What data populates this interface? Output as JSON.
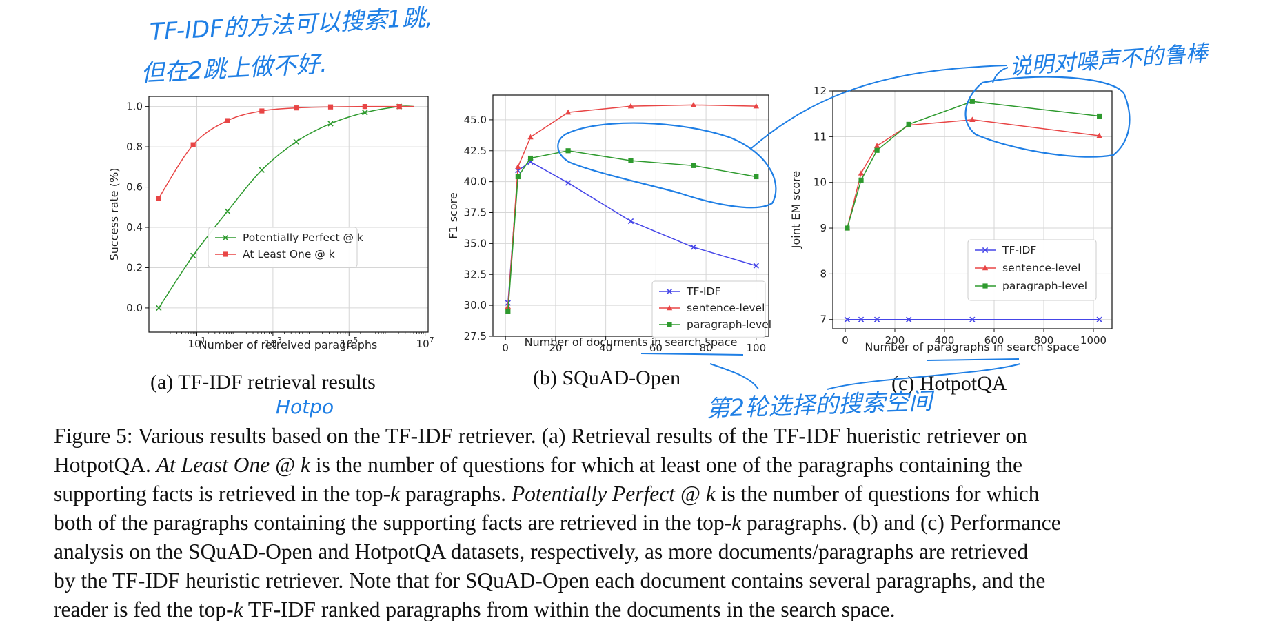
{
  "colors": {
    "tfidf": "#4545e8",
    "sentence": "#e84545",
    "paragraph": "#2e9a2e",
    "ink": "#1f7fe5",
    "grid": "#d6d6d6"
  },
  "subcaptions": {
    "a": "(a) TF-IDF retrieval results",
    "b": "(b) SQuAD-Open",
    "c": "(c) HotpotQA"
  },
  "caption": {
    "l1": "Figure 5: Various results based on the TF-IDF retriever. (a) Retrieval results of the TF-IDF hueristic retriever on",
    "l2a": "HotpotQA. ",
    "l2b": "At Least One @ k",
    "l2c": " is the number of questions for which at least one of the paragraphs containing the",
    "l3a": "supporting facts is retrieved in the top-",
    "l3b": "k",
    "l3c": " paragraphs. ",
    "l3d": "Potentially Perfect @ k",
    "l3e": " is the number of questions for which",
    "l4a": "both of the paragraphs containing the supporting facts are retrieved in the top-",
    "l4b": "k",
    "l4c": " paragraphs. (b) and (c) Performance",
    "l5": "analysis on the SQuAD-Open and HotpotQA datasets, respectively, as more documents/paragraphs are retrieved",
    "l6": "by the TF-IDF heuristic retriever. Note that for SQuAD-Open each document contains several paragraphs, and the",
    "l7a": "reader is fed the top-",
    "l7b": "k",
    "l7c": " TF-IDF ranked paragraphs from within the documents in the search space."
  },
  "annotations": {
    "a1": "TF-IDF的方法可以搜索1跳,",
    "a2": "但在2跳上做不好.",
    "a3": "说明对噪声不的鲁棒",
    "a4": "第2轮选择的搜索空间",
    "a5": "Hotpo"
  },
  "chart_data": [
    {
      "type": "line",
      "xscale": "log",
      "xlabel": "Number of retreived paragraphs",
      "ylabel": "Success rate (%)",
      "xlim": [
        0.55,
        12000000
      ],
      "ylim": [
        -0.12,
        1.05
      ],
      "xtick_labels": [
        "10^1",
        "10^3",
        "10^5",
        "10^7"
      ],
      "ytick_labels": [
        "0.0",
        "0.2",
        "0.4",
        "0.6",
        "0.8",
        "1.0"
      ],
      "legend": "lower-right",
      "series": [
        {
          "name": "Potentially Perfect @ k",
          "color": "#2e9a2e",
          "marker": "x",
          "x": [
            1,
            8,
            64,
            512,
            4096,
            32768,
            262144,
            2097152
          ],
          "y": [
            0.0,
            0.26,
            0.48,
            0.685,
            0.825,
            0.915,
            0.97,
            1.0
          ],
          "curve_end": [
            5000000,
            1.0
          ]
        },
        {
          "name": "At Least One @ k",
          "color": "#e84545",
          "marker": "s",
          "x": [
            1,
            8,
            64,
            512,
            4096,
            32768,
            262144,
            2097152
          ],
          "y": [
            0.545,
            0.81,
            0.93,
            0.978,
            0.993,
            0.998,
            1.0,
            1.0
          ],
          "curve_end": [
            5000000,
            1.0
          ]
        }
      ]
    },
    {
      "type": "line",
      "xlabel": "Number of documents in search space",
      "ylabel": "F1 score",
      "xlim": [
        -5,
        105
      ],
      "ylim": [
        27.5,
        47.0
      ],
      "xtick_labels": [
        "0",
        "20",
        "40",
        "60",
        "80",
        "100"
      ],
      "ytick_labels": [
        "27.5",
        "30.0",
        "32.5",
        "35.0",
        "37.5",
        "40.0",
        "42.5",
        "45.0"
      ],
      "legend": "lower-right",
      "series": [
        {
          "name": "TF-IDF",
          "color": "#4545e8",
          "marker": "x",
          "x": [
            1,
            5,
            10,
            25,
            50,
            75,
            100
          ],
          "y": [
            30.2,
            40.9,
            41.6,
            39.9,
            36.8,
            34.7,
            33.2
          ]
        },
        {
          "name": "sentence-level",
          "color": "#e84545",
          "marker": "^",
          "x": [
            1,
            5,
            10,
            25,
            50,
            75,
            100
          ],
          "y": [
            29.9,
            41.2,
            43.6,
            45.6,
            46.1,
            46.2,
            46.1
          ]
        },
        {
          "name": "paragraph-level",
          "color": "#2e9a2e",
          "marker": "s",
          "x": [
            1,
            5,
            10,
            25,
            50,
            75,
            100
          ],
          "y": [
            29.5,
            40.4,
            41.9,
            42.5,
            41.7,
            41.3,
            40.4
          ]
        }
      ]
    },
    {
      "type": "line",
      "xlabel": "Number of paragraphs in search space",
      "ylabel": "Joint EM score",
      "xlim": [
        -50,
        1075
      ],
      "ylim": [
        6.8,
        12.0
      ],
      "xtick_labels": [
        "0",
        "200",
        "400",
        "600",
        "800",
        "1000"
      ],
      "ytick_labels": [
        "7",
        "8",
        "9",
        "10",
        "11",
        "12"
      ],
      "legend": "center-right",
      "series": [
        {
          "name": "TF-IDF",
          "color": "#4545e8",
          "marker": "x",
          "x": [
            8,
            64,
            128,
            256,
            512,
            1024
          ],
          "y": [
            7.0,
            7.0,
            7.0,
            7.0,
            7.0,
            7.0
          ]
        },
        {
          "name": "sentence-level",
          "color": "#e84545",
          "marker": "^",
          "x": [
            8,
            64,
            128,
            256,
            512,
            1024
          ],
          "y": [
            9.0,
            10.2,
            10.8,
            11.25,
            11.37,
            11.02
          ]
        },
        {
          "name": "paragraph-level",
          "color": "#2e9a2e",
          "marker": "s",
          "x": [
            8,
            64,
            128,
            256,
            512,
            1024
          ],
          "y": [
            9.0,
            10.05,
            10.7,
            11.27,
            11.77,
            11.45
          ]
        }
      ]
    }
  ]
}
